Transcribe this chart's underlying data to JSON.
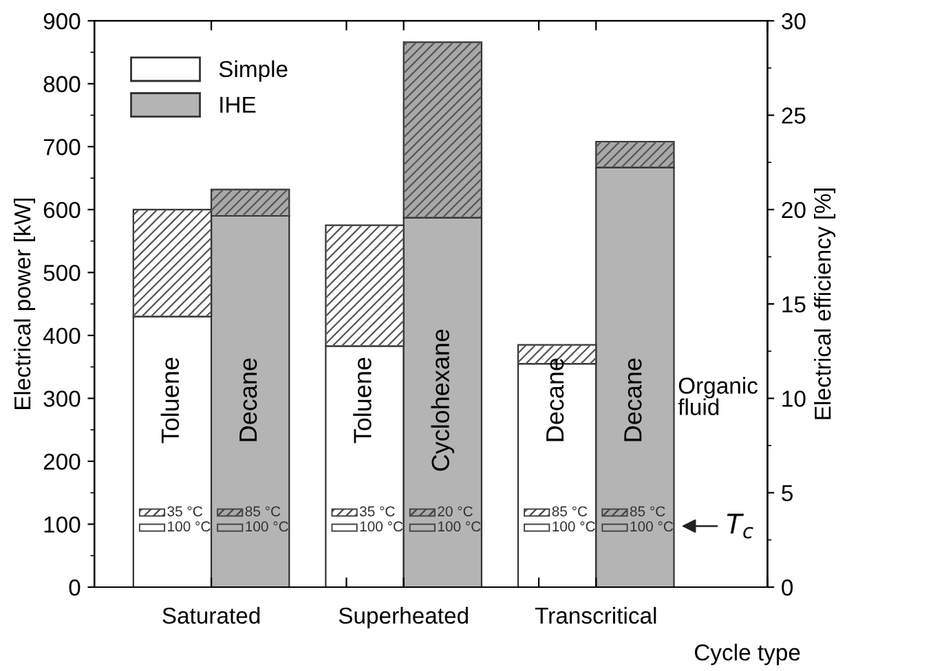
{
  "chart_data": {
    "type": "bar",
    "stacked": true,
    "categories": [
      "Toluene",
      "Decane",
      "Toluene",
      "Cyclohexane",
      "Decane",
      "Decane"
    ],
    "series": [
      {
        "name": "Simple",
        "color": "#ffffff",
        "values": [
          430,
          null,
          383,
          null,
          355,
          null
        ]
      },
      {
        "name": "IHE",
        "color": "#b4b4b4",
        "values": [
          null,
          590,
          null,
          587,
          null,
          667
        ]
      },
      {
        "colors": [
          "#ffffff",
          "#a8a8a8",
          "#ffffff",
          "#a8a8a8",
          "#ffffff",
          "#a8a8a8"
        ],
        "values": [
          170,
          42,
          192,
          279,
          30,
          41
        ]
      }
    ],
    "xlabel": "Cycle type",
    "ylabel": "Electrical power [kW]",
    "y2label": "Electrical efficiency [%]",
    "ylim": [
      0,
      900
    ],
    "yticks": [
      0,
      100,
      200,
      300,
      400,
      500,
      600,
      700,
      800,
      900
    ],
    "y2lim": [
      0,
      30
    ],
    "y2ticks": [
      0,
      5,
      10,
      15,
      20,
      25,
      30
    ],
    "annotations": [
      "Saturated",
      "Superheated",
      "Transcritical",
      "35 °C",
      "100 °C",
      "85 °C",
      "100 °C",
      "35 °C",
      "100 °C",
      "20 °C",
      "100 °C",
      "85 °C",
      "100 °C",
      "85 °C",
      "100 °C",
      "Organic\nfluid",
      "T$_{c}$"
    ],
    "legend": "top left",
    "grid": false
  }
}
